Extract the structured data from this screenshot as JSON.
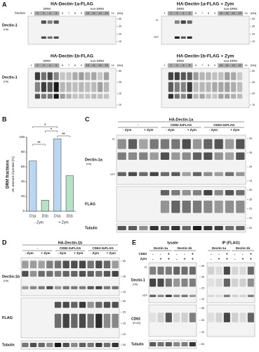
{
  "panel_a": {
    "label": "A",
    "fraction_label": "fraction",
    "lanes": [
      "1",
      "2",
      "3",
      "4",
      "5",
      "6",
      "7",
      "8",
      "9",
      "10",
      "11",
      "12",
      "13",
      "14"
    ],
    "drm": "DRM",
    "non_drm": "non-DRM",
    "blots": [
      {
        "title": "HA-Dectin-1a-FLAG"
      },
      {
        "title": "HA-Dectin-1a-FLAG + Zym"
      },
      {
        "title": "HA-Dectin-1b-FLAG"
      },
      {
        "title": "HA-Dectin-1b-FLAG + Zym"
      }
    ],
    "kda_unit": "[kDa]",
    "markers": [
      "55",
      "35",
      "25",
      "15"
    ],
    "fl": "FL",
    "ntf": "NTF",
    "antibody": "Dectin-1",
    "antibody_tag": "(HA)"
  },
  "panel_b": {
    "label": "B",
    "ylabel": "DRM fractions",
    "ylabel2": "rel. amount of protein [%]",
    "categories": [
      "D1a",
      "D1b",
      "D1a",
      "D1b"
    ],
    "groups": [
      "- Zym",
      "+ Zym"
    ],
    "values": [
      68,
      15,
      98,
      48
    ],
    "colors": [
      "#b9d7f1",
      "#b6e2c8",
      "#b9d7f1",
      "#b6e2c8"
    ],
    "ylim": [
      0,
      100
    ],
    "yticks": [
      0,
      20,
      40,
      60,
      80,
      100
    ],
    "significance": [
      "**",
      "*",
      "*",
      "**"
    ]
  },
  "panel_c": {
    "label": "C",
    "header": "HA-Dectin-1a",
    "conditions": [
      "-",
      "CD82-3xFLAG",
      "CD63-3xFLAG"
    ],
    "zym": [
      "- Zym",
      "+ Zym",
      "- Zym",
      "+ Zym",
      "- Zym",
      "+ Zym"
    ],
    "rows": [
      {
        "antibody": "Dectin-1a",
        "tag": "(HA)"
      },
      {
        "antibody": "FLAG"
      },
      {
        "antibody": "Tubulin"
      }
    ],
    "fl": "FL",
    "ntf": "NTF",
    "markers_top": [
      "55",
      "35",
      "25",
      "15"
    ],
    "markers_mid": [
      "55",
      "35",
      "25",
      "20"
    ],
    "markers_bottom": [
      "55"
    ]
  },
  "panel_d": {
    "label": "D",
    "header": "HA-Dectin-1b",
    "conditions": [
      "-",
      "CD82-3xFLAG",
      "CD63-3xFLAG"
    ],
    "zym": [
      "- Zym",
      "+ Zym",
      "- Zym",
      "+ Zym",
      "- Zym",
      "+ Zym"
    ],
    "rows": [
      {
        "antibody": "Dectin-1b",
        "tag": "(HA)"
      },
      {
        "antibody": "FLAG"
      },
      {
        "antibody": "Tubulin"
      }
    ],
    "markers_top": [
      "55",
      "35",
      "25"
    ],
    "markers_mid": [
      "55",
      "35",
      "25",
      "20"
    ],
    "markers_bottom": [
      "55"
    ]
  },
  "panel_e": {
    "label": "E",
    "lysate": "lysate",
    "ip": "IP (FLAG)",
    "groups": [
      "Dectin-1a",
      "Dectin-1b"
    ],
    "cd63_label": "CD63",
    "zym_label": "Zym",
    "cd63": [
      "-",
      "-",
      "+",
      "-",
      "-",
      "+"
    ],
    "zym_signs": [
      "-",
      "+",
      "+",
      "-",
      "+",
      "+"
    ],
    "rows": [
      {
        "antibody": "Dectin-1",
        "tag": "(HA)"
      },
      {
        "antibody": "CD63",
        "tag": "(FLAG)"
      },
      {
        "antibody": "Tubulin"
      }
    ],
    "fl": "FL",
    "ntf": "NTF",
    "markers_top": [
      "55",
      "35",
      "25",
      "15"
    ],
    "markers_mid": [
      "55",
      "35",
      "25"
    ],
    "markers_bottom": [
      "55"
    ]
  }
}
